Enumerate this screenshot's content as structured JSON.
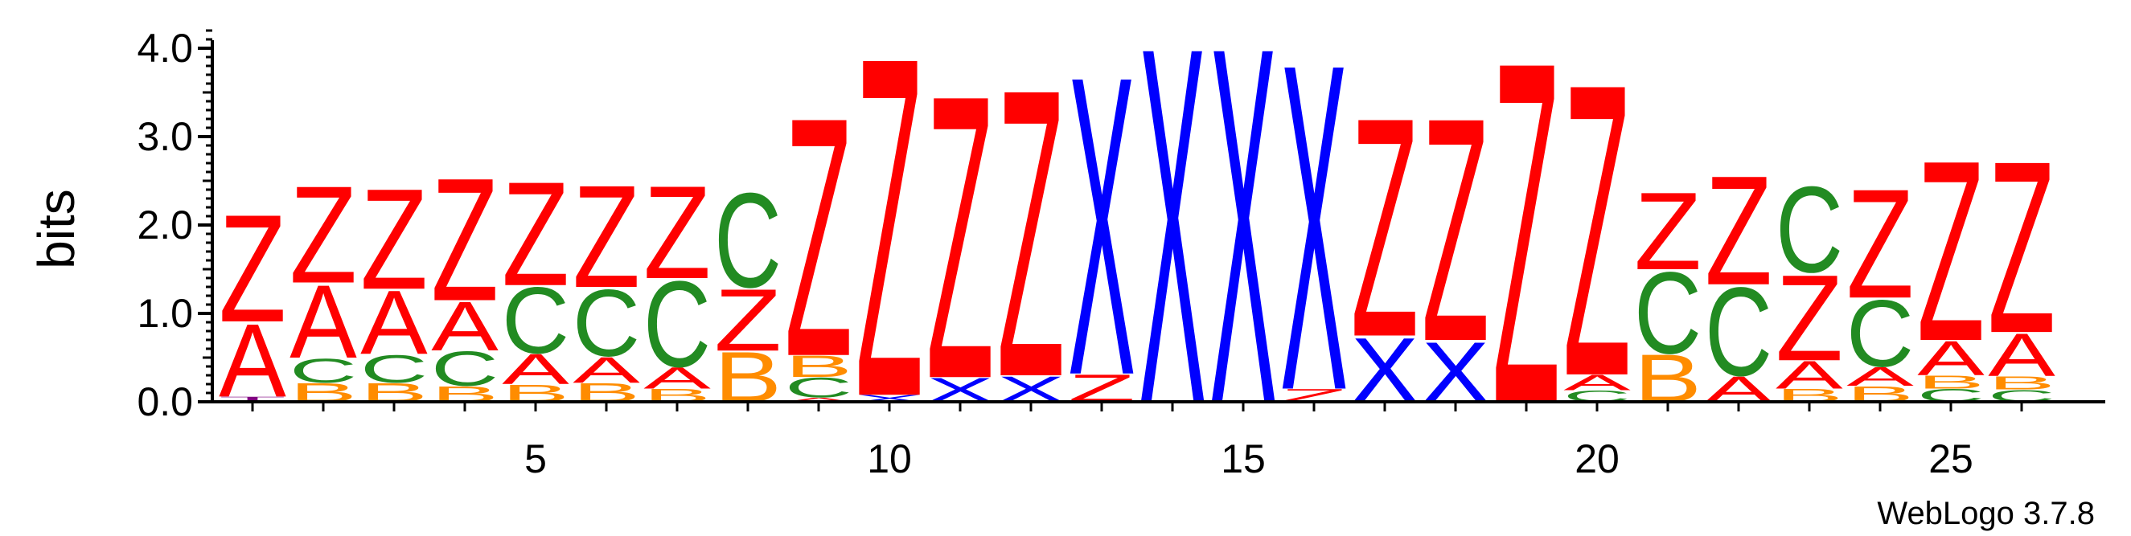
{
  "chart_data": {
    "type": "sequence-logo",
    "ylabel": "bits",
    "ylim": [
      0,
      4.2
    ],
    "y_ticks": [
      "0.0",
      "1.0",
      "2.0",
      "3.0",
      "4.0"
    ],
    "x_ticks": [
      "5",
      "10",
      "15",
      "20",
      "25"
    ],
    "positions": 26,
    "credit": "WebLogo 3.7.8",
    "colors": {
      "Z": "#ff0000",
      "A": "#ff0000",
      "X": "#0000ff",
      "C": "#228b22",
      "B": "#ff8c00",
      "T": "#800080"
    },
    "columns": [
      [
        {
          "l": "T",
          "h": 0.06
        },
        {
          "l": "A",
          "h": 0.85
        },
        {
          "l": "Z",
          "h": 1.25
        }
      ],
      [
        {
          "l": "B",
          "h": 0.22
        },
        {
          "l": "C",
          "h": 0.28
        },
        {
          "l": "A",
          "h": 0.85
        },
        {
          "l": "Z",
          "h": 1.13
        }
      ],
      [
        {
          "l": "B",
          "h": 0.22
        },
        {
          "l": "C",
          "h": 0.32
        },
        {
          "l": "A",
          "h": 0.74
        },
        {
          "l": "Z",
          "h": 1.17
        }
      ],
      [
        {
          "l": "B",
          "h": 0.18
        },
        {
          "l": "C",
          "h": 0.4
        },
        {
          "l": "A",
          "h": 0.57
        },
        {
          "l": "Z",
          "h": 1.43
        }
      ],
      [
        {
          "l": "B",
          "h": 0.2
        },
        {
          "l": "A",
          "h": 0.35
        },
        {
          "l": "C",
          "h": 0.77
        },
        {
          "l": "Z",
          "h": 1.21
        }
      ],
      [
        {
          "l": "B",
          "h": 0.22
        },
        {
          "l": "A",
          "h": 0.3
        },
        {
          "l": "C",
          "h": 0.78
        },
        {
          "l": "Z",
          "h": 1.19
        }
      ],
      [
        {
          "l": "B",
          "h": 0.15
        },
        {
          "l": "A",
          "h": 0.25
        },
        {
          "l": "C",
          "h": 1.0
        },
        {
          "l": "Z",
          "h": 1.08
        }
      ],
      [
        {
          "l": "B",
          "h": 0.58
        },
        {
          "l": "Z",
          "h": 0.72
        },
        {
          "l": "C",
          "h": 1.1
        }
      ],
      [
        {
          "l": "A",
          "h": 0.05
        },
        {
          "l": "C",
          "h": 0.23
        },
        {
          "l": "B",
          "h": 0.25
        },
        {
          "l": "Z",
          "h": 2.78
        }
      ],
      [
        {
          "l": "X",
          "h": 0.08
        },
        {
          "l": "Z",
          "h": 3.95
        }
      ],
      [
        {
          "l": "X",
          "h": 0.28
        },
        {
          "l": "Z",
          "h": 3.3
        }
      ],
      [
        {
          "l": "X",
          "h": 0.3
        },
        {
          "l": "Z",
          "h": 3.35
        }
      ],
      [
        {
          "l": "Z",
          "h": 0.32
        },
        {
          "l": "X",
          "h": 3.48
        }
      ],
      [
        {
          "l": "X",
          "h": 4.15
        }
      ],
      [
        {
          "l": "X",
          "h": 4.15
        }
      ],
      [
        {
          "l": "Z",
          "h": 0.15
        },
        {
          "l": "X",
          "h": 3.8
        }
      ],
      [
        {
          "l": "X",
          "h": 0.75
        },
        {
          "l": "Z",
          "h": 2.55
        }
      ],
      [
        {
          "l": "X",
          "h": 0.7
        },
        {
          "l": "Z",
          "h": 2.6
        }
      ],
      [
        {
          "l": "Z",
          "h": 3.98
        }
      ],
      [
        {
          "l": "C",
          "h": 0.13
        },
        {
          "l": "A",
          "h": 0.18
        },
        {
          "l": "Z",
          "h": 3.4
        }
      ],
      [
        {
          "l": "B",
          "h": 0.55
        },
        {
          "l": "C",
          "h": 0.95
        },
        {
          "l": "Z",
          "h": 0.9
        }
      ],
      [
        {
          "l": "A",
          "h": 0.3
        },
        {
          "l": "C",
          "h": 1.03
        },
        {
          "l": "Z",
          "h": 1.27
        }
      ],
      [
        {
          "l": "B",
          "h": 0.15
        },
        {
          "l": "A",
          "h": 0.32
        },
        {
          "l": "Z",
          "h": 1.0
        },
        {
          "l": "C",
          "h": 1.0
        }
      ],
      [
        {
          "l": "B",
          "h": 0.18
        },
        {
          "l": "A",
          "h": 0.22
        },
        {
          "l": "C",
          "h": 0.78
        },
        {
          "l": "Z",
          "h": 1.27
        }
      ],
      [
        {
          "l": "C",
          "h": 0.15
        },
        {
          "l": "B",
          "h": 0.15
        },
        {
          "l": "A",
          "h": 0.4
        },
        {
          "l": "Z",
          "h": 2.1
        }
      ],
      [
        {
          "l": "C",
          "h": 0.14
        },
        {
          "l": "B",
          "h": 0.15
        },
        {
          "l": "A",
          "h": 0.5
        },
        {
          "l": "Z",
          "h": 2.0
        }
      ]
    ]
  }
}
